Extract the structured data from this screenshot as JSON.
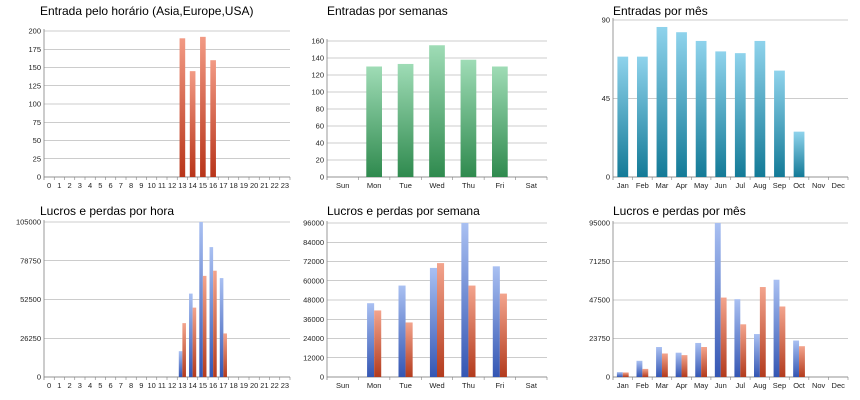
{
  "colors": {
    "grid": "#9a9a9a",
    "axis": "#808080",
    "red_top": "#f29a84",
    "red_bottom": "#b8351a",
    "green_top": "#9fdcb6",
    "green_bottom": "#2f8a4e",
    "teal_top": "#8fd3ec",
    "teal_bottom": "#137a97",
    "blue_top": "#a9c0f2",
    "blue_bottom": "#3456b3",
    "orange_top": "#f3a48d",
    "orange_bottom": "#b33b1d"
  },
  "chart_data": [
    {
      "id": "c1",
      "type": "bar",
      "title": "Entrada pelo horário (Asia,Europe,USA)",
      "categories": [
        "0",
        "1",
        "2",
        "3",
        "4",
        "5",
        "6",
        "7",
        "8",
        "9",
        "10",
        "11",
        "12",
        "13",
        "14",
        "15",
        "16",
        "17",
        "18",
        "19",
        "20",
        "21",
        "22",
        "23"
      ],
      "series": [
        {
          "values": [
            0,
            0,
            0,
            0,
            0,
            0,
            0,
            0,
            0,
            0,
            0,
            0,
            0,
            190,
            145,
            192,
            160,
            0,
            0,
            0,
            0,
            0,
            0,
            0
          ],
          "color": "red"
        }
      ],
      "ylim": [
        0,
        200
      ],
      "yticks": [
        0,
        25,
        50,
        75,
        100,
        125,
        150,
        175,
        200
      ],
      "grid": true
    },
    {
      "id": "c2",
      "type": "bar",
      "title": "Entradas por semanas",
      "categories": [
        "Sun",
        "Mon",
        "Tue",
        "Wed",
        "Thu",
        "Fri",
        "Sat"
      ],
      "series": [
        {
          "values": [
            0,
            130,
            133,
            155,
            138,
            130,
            0
          ],
          "color": "green"
        }
      ],
      "ylim": [
        0,
        160
      ],
      "yticks": [
        0,
        20,
        40,
        60,
        80,
        100,
        120,
        140,
        160
      ],
      "grid": true
    },
    {
      "id": "c3",
      "type": "bar",
      "title": "Entradas por mês",
      "categories": [
        "Jan",
        "Feb",
        "Mar",
        "Apr",
        "May",
        "Jun",
        "Jul",
        "Aug",
        "Sep",
        "Oct",
        "Nov",
        "Dec"
      ],
      "series": [
        {
          "values": [
            69,
            69,
            86,
            83,
            78,
            72,
            71,
            78,
            61,
            26,
            0,
            0
          ],
          "color": "teal"
        }
      ],
      "ylim": [
        0,
        90
      ],
      "yticks": [
        0,
        45,
        90
      ],
      "grid": true
    },
    {
      "id": "c4",
      "type": "bar",
      "title": "Lucros e perdas por hora",
      "categories": [
        "0",
        "1",
        "2",
        "3",
        "4",
        "5",
        "6",
        "7",
        "8",
        "9",
        "10",
        "11",
        "12",
        "13",
        "14",
        "15",
        "16",
        "17",
        "18",
        "19",
        "20",
        "21",
        "22",
        "23"
      ],
      "series": [
        {
          "values": [
            0,
            0,
            0,
            0,
            0,
            0,
            0,
            0,
            0,
            0,
            0,
            0,
            0,
            17500,
            56500,
            105000,
            88000,
            67000,
            0,
            0,
            0,
            0,
            0,
            0
          ],
          "color": "blue"
        },
        {
          "values": [
            0,
            0,
            0,
            0,
            0,
            0,
            0,
            0,
            0,
            0,
            0,
            0,
            0,
            36500,
            47000,
            68500,
            72000,
            29500,
            0,
            0,
            0,
            0,
            0,
            0
          ],
          "color": "orange"
        }
      ],
      "ylim": [
        0,
        105000
      ],
      "yticks": [
        0,
        26250,
        52500,
        78750,
        105000
      ],
      "grid": true
    },
    {
      "id": "c5",
      "type": "bar",
      "title": "Lucros e perdas por semana",
      "categories": [
        "Sun",
        "Mon",
        "Tue",
        "Wed",
        "Thu",
        "Fri",
        "Sat"
      ],
      "series": [
        {
          "values": [
            0,
            46000,
            57000,
            68000,
            96000,
            69000,
            0
          ],
          "color": "blue"
        },
        {
          "values": [
            0,
            41500,
            34000,
            71000,
            57000,
            52000,
            0
          ],
          "color": "orange"
        }
      ],
      "ylim": [
        0,
        96000
      ],
      "yticks": [
        0,
        12000,
        24000,
        36000,
        48000,
        60000,
        72000,
        84000,
        96000
      ],
      "grid": true
    },
    {
      "id": "c6",
      "type": "bar",
      "title": "Lucros e perdas por mês",
      "categories": [
        "Jan",
        "Feb",
        "Mar",
        "Apr",
        "May",
        "Jun",
        "Jul",
        "Aug",
        "Sep",
        "Oct",
        "Nov",
        "Dec"
      ],
      "series": [
        {
          "values": [
            3000,
            10000,
            18500,
            15000,
            21000,
            95000,
            48000,
            26500,
            60000,
            22500,
            0,
            0
          ],
          "color": "blue"
        },
        {
          "values": [
            2800,
            5000,
            14500,
            13500,
            18500,
            49000,
            32500,
            55500,
            43500,
            19000,
            0,
            0
          ],
          "color": "orange"
        }
      ],
      "ylim": [
        0,
        95000
      ],
      "yticks": [
        0,
        23750,
        47500,
        71250,
        95000
      ],
      "grid": true
    }
  ]
}
